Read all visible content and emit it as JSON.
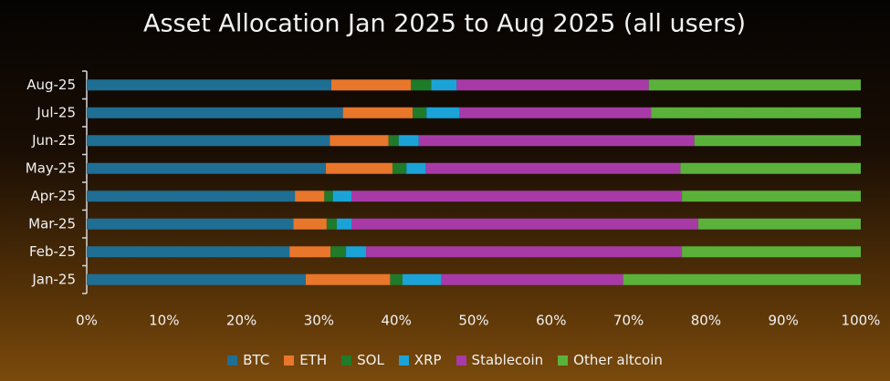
{
  "chart_data": {
    "type": "stacked-barh",
    "title": "Asset Allocation Jan 2025 to Aug 2025 (all users)",
    "categories": [
      "Jan-25",
      "Feb-25",
      "Mar-25",
      "Apr-25",
      "May-25",
      "Jun-25",
      "Jul-25",
      "Aug-25"
    ],
    "series": [
      {
        "name": "BTC",
        "color": "#1f6e94",
        "values": [
          28.3,
          26.2,
          26.7,
          26.9,
          30.9,
          31.4,
          33.1,
          31.6
        ]
      },
      {
        "name": "ETH",
        "color": "#e8762b",
        "values": [
          10.9,
          5.3,
          4.3,
          3.8,
          8.6,
          7.6,
          9.0,
          10.3
        ]
      },
      {
        "name": "SOL",
        "color": "#1f7a2a",
        "values": [
          1.6,
          2.0,
          1.3,
          1.1,
          1.8,
          1.3,
          1.8,
          2.6
        ]
      },
      {
        "name": "XRP",
        "color": "#1ba3d8",
        "values": [
          5.0,
          2.6,
          1.9,
          2.4,
          2.5,
          2.6,
          4.3,
          3.3
        ]
      },
      {
        "name": "Stablecoin",
        "color": "#a83aa8",
        "values": [
          23.5,
          40.8,
          44.8,
          42.7,
          32.9,
          35.6,
          24.7,
          24.8
        ]
      },
      {
        "name": "Other altcoin",
        "color": "#5ab23a",
        "values": [
          30.7,
          23.1,
          21.0,
          23.1,
          23.3,
          21.5,
          27.1,
          27.4
        ]
      }
    ],
    "xlim": [
      0,
      100
    ],
    "xticks": [
      {
        "value": 0,
        "label": "0%"
      },
      {
        "value": 10,
        "label": "10%"
      },
      {
        "value": 20,
        "label": "20%"
      },
      {
        "value": 30,
        "label": "30%"
      },
      {
        "value": 40,
        "label": "40%"
      },
      {
        "value": 50,
        "label": "50%"
      },
      {
        "value": 60,
        "label": "60%"
      },
      {
        "value": 70,
        "label": "70%"
      },
      {
        "value": 80,
        "label": "80%"
      },
      {
        "value": 90,
        "label": "90%"
      },
      {
        "value": 100,
        "label": "100%"
      }
    ],
    "legend": "bottom"
  }
}
